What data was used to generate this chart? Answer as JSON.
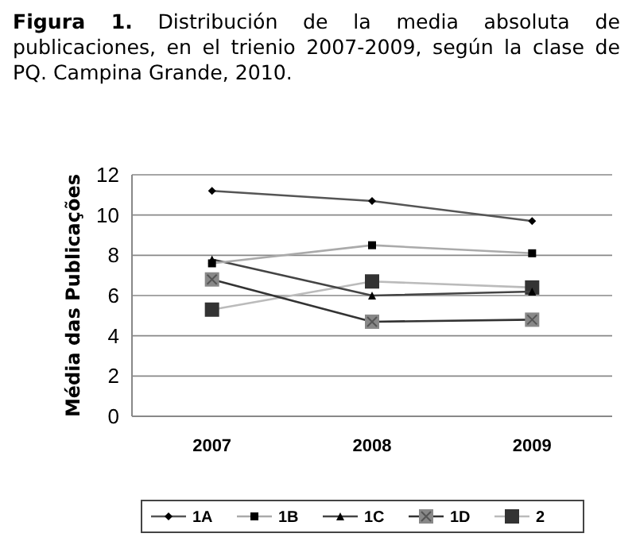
{
  "chart_data": {
    "type": "line",
    "title": "Figura 1. Distribución de la media absoluta de publicaciones, en el trienio 2007-2009, según la clase de PQ. Campina Grande, 2010.",
    "ylabel": "Média das Publicações",
    "categories": [
      "2007",
      "2008",
      "2009"
    ],
    "series": [
      {
        "name": "1A",
        "color": "#555555",
        "marker": "diamond",
        "values": [
          11.2,
          10.7,
          9.7
        ]
      },
      {
        "name": "1B",
        "color": "#aaaaaa",
        "marker": "square",
        "values": [
          7.6,
          8.5,
          8.1
        ]
      },
      {
        "name": "1C",
        "color": "#444444",
        "marker": "triangle",
        "values": [
          7.8,
          6.0,
          6.2
        ]
      },
      {
        "name": "1D",
        "color": "#333333",
        "marker": "square",
        "values": [
          6.8,
          4.7,
          4.8
        ]
      },
      {
        "name": "2",
        "color": "#bbbbbb",
        "marker": "square",
        "values": [
          5.3,
          6.7,
          6.4
        ]
      }
    ],
    "ylim": [
      0,
      12
    ],
    "yticks": [
      0,
      2,
      4,
      6,
      8,
      10,
      12
    ],
    "grid": "y",
    "legend": "bottom",
    "line_style": "solid"
  }
}
